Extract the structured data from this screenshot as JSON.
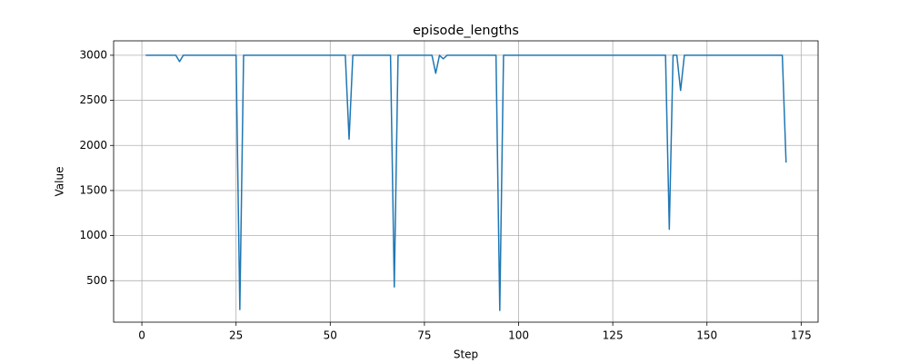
{
  "chart_data": {
    "type": "line",
    "title": "episode_lengths",
    "x_label": "Step",
    "y_label": "Value",
    "x": [
      1,
      2,
      3,
      4,
      5,
      6,
      7,
      8,
      9,
      10,
      11,
      12,
      13,
      14,
      15,
      16,
      17,
      18,
      19,
      20,
      21,
      22,
      23,
      24,
      25,
      26,
      27,
      28,
      29,
      30,
      31,
      32,
      33,
      34,
      35,
      36,
      37,
      38,
      39,
      40,
      41,
      42,
      43,
      44,
      45,
      46,
      47,
      48,
      49,
      50,
      51,
      52,
      53,
      54,
      55,
      56,
      57,
      58,
      59,
      60,
      61,
      62,
      63,
      64,
      65,
      66,
      67,
      68,
      69,
      70,
      71,
      72,
      73,
      74,
      75,
      76,
      77,
      78,
      79,
      80,
      81,
      82,
      83,
      84,
      85,
      86,
      87,
      88,
      89,
      90,
      91,
      92,
      93,
      94,
      95,
      96,
      97,
      98,
      99,
      100,
      101,
      102,
      103,
      104,
      105,
      106,
      107,
      108,
      109,
      110,
      111,
      112,
      113,
      114,
      115,
      116,
      117,
      118,
      119,
      120,
      121,
      122,
      123,
      124,
      125,
      126,
      127,
      128,
      129,
      130,
      131,
      132,
      133,
      134,
      135,
      136,
      137,
      138,
      139,
      140,
      141,
      142,
      143,
      144,
      145,
      146,
      147,
      148,
      149,
      150,
      151,
      152,
      153,
      154,
      155,
      156,
      157,
      158,
      159,
      160,
      161,
      162,
      163,
      164,
      165,
      166,
      167,
      168,
      169,
      170,
      171
    ],
    "series": [
      {
        "color": "#1f77b4",
        "values": [
          3000,
          3000,
          3000,
          3000,
          3000,
          3000,
          3000,
          3000,
          3000,
          2930,
          3000,
          3000,
          3000,
          3000,
          3000,
          3000,
          3000,
          3000,
          3000,
          3000,
          3000,
          3000,
          3000,
          3000,
          3000,
          180,
          3000,
          3000,
          3000,
          3000,
          3000,
          3000,
          3000,
          3000,
          3000,
          3000,
          3000,
          3000,
          3000,
          3000,
          3000,
          3000,
          3000,
          3000,
          3000,
          3000,
          3000,
          3000,
          3000,
          3000,
          3000,
          3000,
          3000,
          3000,
          2070,
          3000,
          3000,
          3000,
          3000,
          3000,
          3000,
          3000,
          3000,
          3000,
          3000,
          3000,
          430,
          3000,
          3000,
          3000,
          3000,
          3000,
          3000,
          3000,
          3000,
          3000,
          3000,
          2800,
          3000,
          2960,
          3000,
          3000,
          3000,
          3000,
          3000,
          3000,
          3000,
          3000,
          3000,
          3000,
          3000,
          3000,
          3000,
          3000,
          170,
          3000,
          3000,
          3000,
          3000,
          3000,
          3000,
          3000,
          3000,
          3000,
          3000,
          3000,
          3000,
          3000,
          3000,
          3000,
          3000,
          3000,
          3000,
          3000,
          3000,
          3000,
          3000,
          3000,
          3000,
          3000,
          3000,
          3000,
          3000,
          3000,
          3000,
          3000,
          3000,
          3000,
          3000,
          3000,
          3000,
          3000,
          3000,
          3000,
          3000,
          3000,
          3000,
          3000,
          3000,
          1070,
          3000,
          3000,
          2610,
          3000,
          3000,
          3000,
          3000,
          3000,
          3000,
          3000,
          3000,
          3000,
          3000,
          3000,
          3000,
          3000,
          3000,
          3000,
          3000,
          3000,
          3000,
          3000,
          3000,
          3000,
          3000,
          3000,
          3000,
          3000,
          3000,
          3000,
          1810
        ]
      }
    ],
    "xlim": [
      -7.5,
      179.5
    ],
    "ylim": [
      40,
      3160
    ],
    "xticks": [
      0,
      25,
      50,
      75,
      100,
      125,
      150,
      175
    ],
    "yticks": [
      500,
      1000,
      1500,
      2000,
      2500,
      3000
    ],
    "grid": true
  }
}
